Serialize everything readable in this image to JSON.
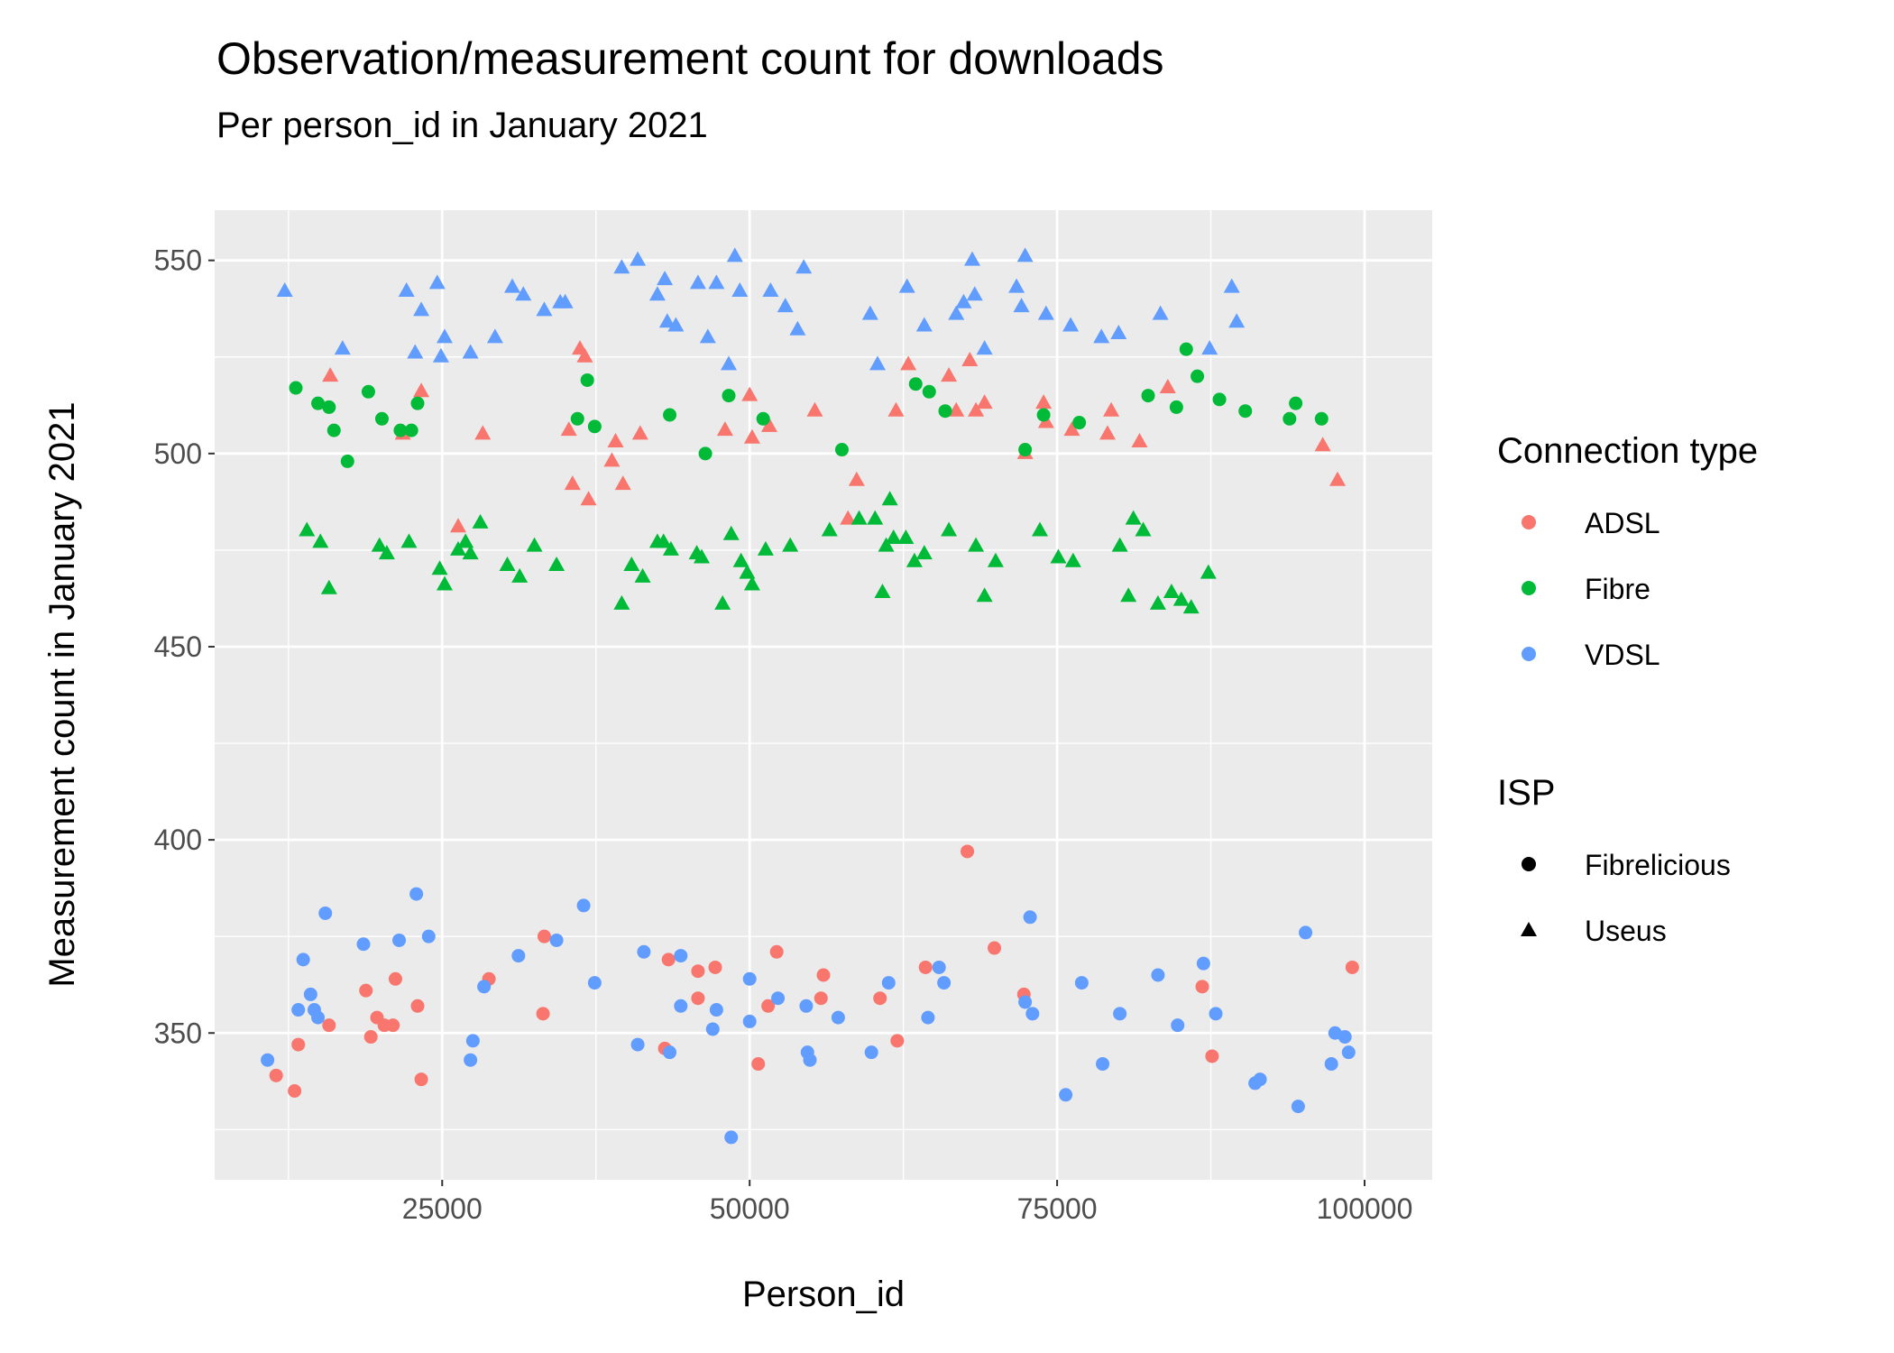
{
  "chart_data": {
    "type": "scatter",
    "title": "Observation/measurement count for downloads",
    "subtitle": "Per person_id in January 2021",
    "xlabel": "Person_id",
    "ylabel": "Measurement count in January 2021",
    "xlim": [
      6500,
      105500
    ],
    "ylim": [
      312,
      563
    ],
    "x_ticks": [
      25000,
      50000,
      75000,
      100000
    ],
    "y_ticks": [
      350,
      400,
      450,
      500,
      550
    ],
    "x_tick_labels": [
      "25000",
      "50000",
      "75000",
      "100000"
    ],
    "y_tick_labels": [
      "350",
      "400",
      "450",
      "500",
      "550"
    ],
    "grid": true,
    "legend_position": "right",
    "colors": {
      "ADSL": "#F8766D",
      "Fibre": "#00BA38",
      "VDSL": "#619CFF",
      "panel": "#EBEBEB",
      "grid": "#FFFFFF",
      "legend_key": "#000000"
    },
    "legend": {
      "color_title": "Connection type",
      "color_items": [
        "ADSL",
        "Fibre",
        "VDSL"
      ],
      "shape_title": "ISP",
      "shape_items": [
        {
          "label": "Fibrelicious",
          "shape": "circle"
        },
        {
          "label": "Useus",
          "shape": "triangle"
        }
      ]
    },
    "series": [
      {
        "connection": "ADSL",
        "isp": "Fibrelicious",
        "points": [
          [
            11500,
            339
          ],
          [
            13000,
            335
          ],
          [
            13300,
            347
          ],
          [
            15800,
            352
          ],
          [
            18800,
            361
          ],
          [
            19200,
            349
          ],
          [
            19700,
            354
          ],
          [
            20300,
            352
          ],
          [
            21000,
            352
          ],
          [
            21200,
            364
          ],
          [
            23000,
            357
          ],
          [
            23300,
            338
          ],
          [
            28800,
            364
          ],
          [
            33200,
            355
          ],
          [
            33300,
            375
          ],
          [
            43100,
            346
          ],
          [
            43400,
            369
          ],
          [
            45800,
            359
          ],
          [
            45800,
            366
          ],
          [
            47200,
            367
          ],
          [
            50700,
            342
          ],
          [
            51500,
            357
          ],
          [
            52200,
            371
          ],
          [
            55800,
            359
          ],
          [
            56000,
            365
          ],
          [
            60600,
            359
          ],
          [
            62000,
            348
          ],
          [
            64300,
            367
          ],
          [
            67700,
            397
          ],
          [
            69900,
            372
          ],
          [
            72300,
            360
          ],
          [
            86800,
            362
          ],
          [
            87600,
            344
          ],
          [
            99000,
            367
          ]
        ]
      },
      {
        "connection": "ADSL",
        "isp": "Useus",
        "points": [
          [
            15900,
            520
          ],
          [
            21800,
            505
          ],
          [
            23300,
            516
          ],
          [
            26300,
            481
          ],
          [
            28300,
            505
          ],
          [
            35300,
            506
          ],
          [
            35600,
            492
          ],
          [
            36200,
            527
          ],
          [
            36600,
            525
          ],
          [
            36900,
            488
          ],
          [
            38800,
            498
          ],
          [
            39100,
            503
          ],
          [
            39700,
            492
          ],
          [
            41100,
            505
          ],
          [
            48000,
            506
          ],
          [
            50000,
            515
          ],
          [
            50200,
            504
          ],
          [
            51600,
            507
          ],
          [
            55300,
            511
          ],
          [
            58000,
            483
          ],
          [
            58700,
            493
          ],
          [
            61900,
            511
          ],
          [
            62900,
            523
          ],
          [
            66200,
            520
          ],
          [
            66800,
            511
          ],
          [
            67900,
            524
          ],
          [
            68400,
            511
          ],
          [
            69100,
            513
          ],
          [
            72400,
            500
          ],
          [
            73900,
            513
          ],
          [
            74100,
            508
          ],
          [
            76200,
            506
          ],
          [
            79100,
            505
          ],
          [
            79400,
            511
          ],
          [
            81700,
            503
          ],
          [
            84000,
            517
          ],
          [
            96600,
            502
          ],
          [
            97800,
            493
          ]
        ]
      },
      {
        "connection": "Fibre",
        "isp": "Fibrelicious",
        "points": [
          [
            13100,
            517
          ],
          [
            14900,
            513
          ],
          [
            15800,
            512
          ],
          [
            16200,
            506
          ],
          [
            17300,
            498
          ],
          [
            19000,
            516
          ],
          [
            20100,
            509
          ],
          [
            21600,
            506
          ],
          [
            22500,
            506
          ],
          [
            23000,
            513
          ],
          [
            36000,
            509
          ],
          [
            36800,
            519
          ],
          [
            37400,
            507
          ],
          [
            43500,
            510
          ],
          [
            46400,
            500
          ],
          [
            48300,
            515
          ],
          [
            51100,
            509
          ],
          [
            57500,
            501
          ],
          [
            63500,
            518
          ],
          [
            64600,
            516
          ],
          [
            65900,
            511
          ],
          [
            72400,
            501
          ],
          [
            73900,
            510
          ],
          [
            76800,
            508
          ],
          [
            82400,
            515
          ],
          [
            84700,
            512
          ],
          [
            85500,
            527
          ],
          [
            86400,
            520
          ],
          [
            88200,
            514
          ],
          [
            90300,
            511
          ],
          [
            93900,
            509
          ],
          [
            94400,
            513
          ],
          [
            96500,
            509
          ]
        ]
      },
      {
        "connection": "Fibre",
        "isp": "Useus",
        "points": [
          [
            14000,
            480
          ],
          [
            15100,
            477
          ],
          [
            15800,
            465
          ],
          [
            19900,
            476
          ],
          [
            20500,
            474
          ],
          [
            22300,
            477
          ],
          [
            24800,
            470
          ],
          [
            25200,
            466
          ],
          [
            26300,
            475
          ],
          [
            26900,
            477
          ],
          [
            27300,
            474
          ],
          [
            28100,
            482
          ],
          [
            30300,
            471
          ],
          [
            31300,
            468
          ],
          [
            32500,
            476
          ],
          [
            34300,
            471
          ],
          [
            39600,
            461
          ],
          [
            40400,
            471
          ],
          [
            41300,
            468
          ],
          [
            42500,
            477
          ],
          [
            43000,
            477
          ],
          [
            43600,
            475
          ],
          [
            45700,
            474
          ],
          [
            46100,
            473
          ],
          [
            47800,
            461
          ],
          [
            48500,
            479
          ],
          [
            49300,
            472
          ],
          [
            49800,
            469
          ],
          [
            50200,
            466
          ],
          [
            51300,
            475
          ],
          [
            53300,
            476
          ],
          [
            56500,
            480
          ],
          [
            58900,
            483
          ],
          [
            60200,
            483
          ],
          [
            60800,
            464
          ],
          [
            61100,
            476
          ],
          [
            61400,
            488
          ],
          [
            61700,
            478
          ],
          [
            62700,
            478
          ],
          [
            63400,
            472
          ],
          [
            64200,
            474
          ],
          [
            66200,
            480
          ],
          [
            68400,
            476
          ],
          [
            69100,
            463
          ],
          [
            70000,
            472
          ],
          [
            73600,
            480
          ],
          [
            75100,
            473
          ],
          [
            76300,
            472
          ],
          [
            80100,
            476
          ],
          [
            80800,
            463
          ],
          [
            81200,
            483
          ],
          [
            82000,
            480
          ],
          [
            83200,
            461
          ],
          [
            84300,
            464
          ],
          [
            85100,
            462
          ],
          [
            85900,
            460
          ],
          [
            87300,
            469
          ]
        ]
      },
      {
        "connection": "VDSL",
        "isp": "Fibrelicious",
        "points": [
          [
            10800,
            343
          ],
          [
            13300,
            356
          ],
          [
            13700,
            369
          ],
          [
            14300,
            360
          ],
          [
            14600,
            356
          ],
          [
            14900,
            354
          ],
          [
            15500,
            381
          ],
          [
            18600,
            373
          ],
          [
            21500,
            374
          ],
          [
            22900,
            386
          ],
          [
            23900,
            375
          ],
          [
            27300,
            343
          ],
          [
            27500,
            348
          ],
          [
            28400,
            362
          ],
          [
            31200,
            370
          ],
          [
            34300,
            374
          ],
          [
            36500,
            383
          ],
          [
            37400,
            363
          ],
          [
            40900,
            347
          ],
          [
            41400,
            371
          ],
          [
            43500,
            345
          ],
          [
            44400,
            357
          ],
          [
            44400,
            370
          ],
          [
            47000,
            351
          ],
          [
            47300,
            356
          ],
          [
            48500,
            323
          ],
          [
            50000,
            353
          ],
          [
            50000,
            364
          ],
          [
            52300,
            359
          ],
          [
            54600,
            357
          ],
          [
            54700,
            345
          ],
          [
            54900,
            343
          ],
          [
            57200,
            354
          ],
          [
            59900,
            345
          ],
          [
            61300,
            363
          ],
          [
            64500,
            354
          ],
          [
            65400,
            367
          ],
          [
            65800,
            363
          ],
          [
            72400,
            358
          ],
          [
            72800,
            380
          ],
          [
            73000,
            355
          ],
          [
            75700,
            334
          ],
          [
            77000,
            363
          ],
          [
            78700,
            342
          ],
          [
            80100,
            355
          ],
          [
            83200,
            365
          ],
          [
            84800,
            352
          ],
          [
            86900,
            368
          ],
          [
            87900,
            355
          ],
          [
            91100,
            337
          ],
          [
            91500,
            338
          ],
          [
            94600,
            331
          ],
          [
            95200,
            376
          ],
          [
            97300,
            342
          ],
          [
            97600,
            350
          ],
          [
            98400,
            349
          ],
          [
            98700,
            345
          ]
        ]
      },
      {
        "connection": "VDSL",
        "isp": "Useus",
        "points": [
          [
            12200,
            542
          ],
          [
            16900,
            527
          ],
          [
            22100,
            542
          ],
          [
            22800,
            526
          ],
          [
            23300,
            537
          ],
          [
            24600,
            544
          ],
          [
            24900,
            525
          ],
          [
            25200,
            530
          ],
          [
            27300,
            526
          ],
          [
            29300,
            530
          ],
          [
            30700,
            543
          ],
          [
            31600,
            541
          ],
          [
            33300,
            537
          ],
          [
            34600,
            539
          ],
          [
            35000,
            539
          ],
          [
            39600,
            548
          ],
          [
            40900,
            550
          ],
          [
            42500,
            541
          ],
          [
            43100,
            545
          ],
          [
            43300,
            534
          ],
          [
            44000,
            533
          ],
          [
            45800,
            544
          ],
          [
            46600,
            530
          ],
          [
            47300,
            544
          ],
          [
            48300,
            523
          ],
          [
            48800,
            551
          ],
          [
            49200,
            542
          ],
          [
            51700,
            542
          ],
          [
            52900,
            538
          ],
          [
            53900,
            532
          ],
          [
            54400,
            548
          ],
          [
            59800,
            536
          ],
          [
            60400,
            523
          ],
          [
            62800,
            543
          ],
          [
            64200,
            533
          ],
          [
            66800,
            536
          ],
          [
            67400,
            539
          ],
          [
            68100,
            550
          ],
          [
            68300,
            541
          ],
          [
            69100,
            527
          ],
          [
            71700,
            543
          ],
          [
            72100,
            538
          ],
          [
            72400,
            551
          ],
          [
            74100,
            536
          ],
          [
            76100,
            533
          ],
          [
            78600,
            530
          ],
          [
            80000,
            531
          ],
          [
            83400,
            536
          ],
          [
            87400,
            527
          ],
          [
            89200,
            543
          ],
          [
            89600,
            534
          ]
        ]
      }
    ]
  }
}
